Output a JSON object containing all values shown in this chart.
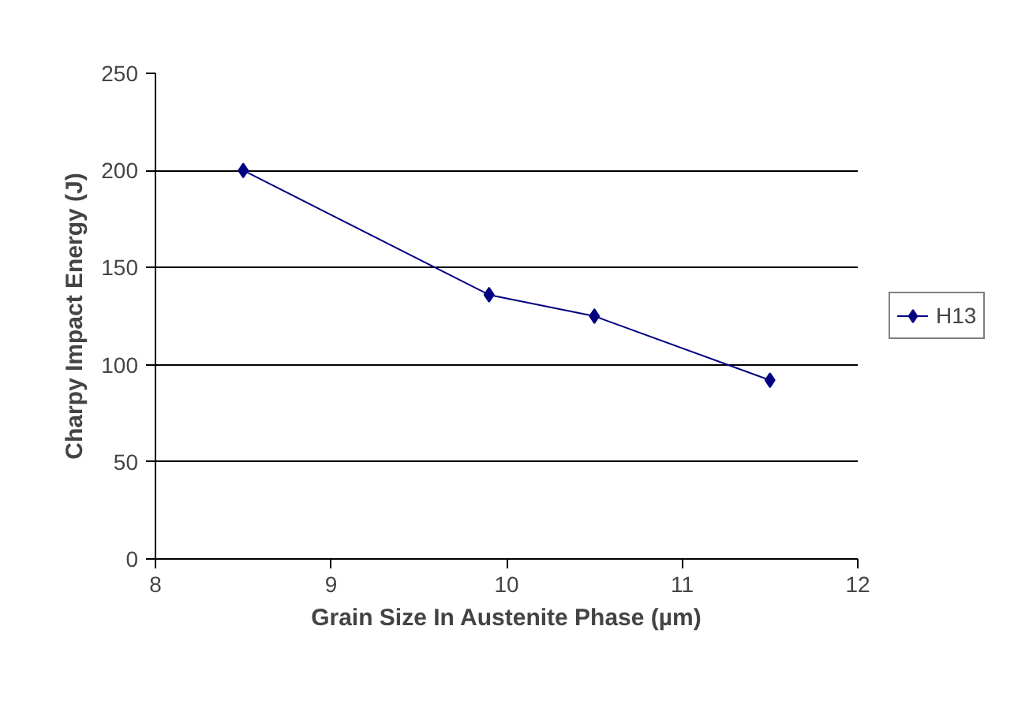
{
  "chart_data": {
    "type": "line",
    "xlabel": "Grain Size In Austenite Phase (µm)",
    "ylabel": "Charpy Impact Energy (J)",
    "x": [
      8.5,
      9.9,
      10.5,
      11.5
    ],
    "series": [
      {
        "name": "H13",
        "color": "#000080",
        "values": [
          200,
          136,
          125,
          92
        ]
      }
    ],
    "xlim": [
      8,
      12
    ],
    "xticks": [
      8,
      9,
      10,
      11,
      12
    ],
    "ylim": [
      0,
      250
    ],
    "yticks": [
      0,
      50,
      100,
      150,
      200,
      250
    ],
    "grid": "y",
    "legend": "right",
    "marker": "diamond",
    "line_style": "solid"
  }
}
